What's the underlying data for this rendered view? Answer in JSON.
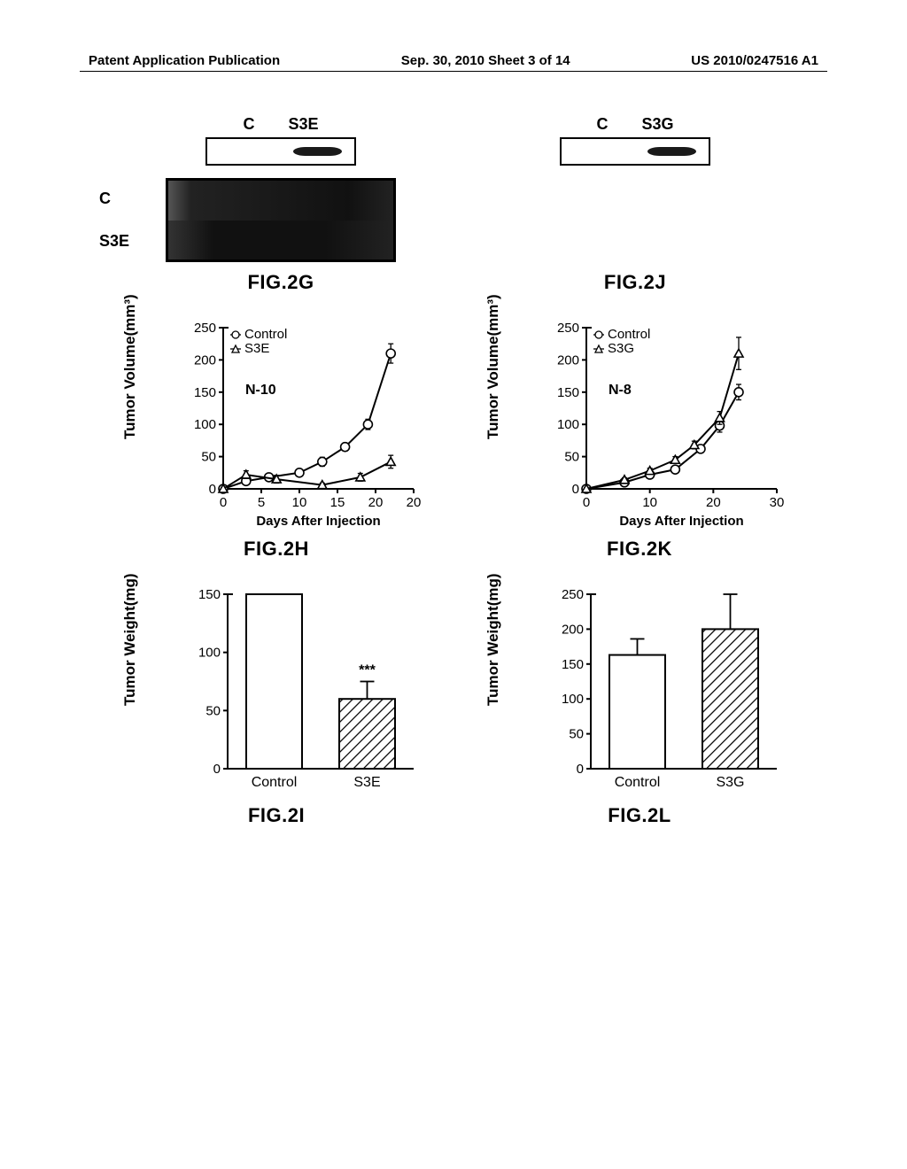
{
  "header": {
    "left": "Patent Application Publication",
    "center": "Sep. 30, 2010  Sheet 3 of 14",
    "right": "US 2010/0247516 A1"
  },
  "panels": {
    "G": {
      "title": "FIG.2G",
      "top_labels": [
        "C",
        "S3E"
      ],
      "gel_labels": [
        "C",
        "S3E"
      ]
    },
    "J": {
      "title": "FIG.2J",
      "top_labels": [
        "C",
        "S3G"
      ]
    },
    "H": {
      "title": "FIG.2H",
      "type": "line",
      "ylabel": "Tumor Volume(mm³)",
      "xlabel": "Days After Injection",
      "legend": [
        "Control",
        "S3E"
      ],
      "legend_markers": [
        "open-circle",
        "open-triangle"
      ],
      "n_label": "N-10",
      "ylim": [
        0,
        250
      ],
      "ytick_step": 50,
      "xlim": [
        0,
        25
      ],
      "xtick_step": 5,
      "xtick_label_extra": "20",
      "series": [
        {
          "name": "Control",
          "marker": "circle",
          "color": "#000000",
          "points": [
            [
              0,
              0
            ],
            [
              3,
              12
            ],
            [
              6,
              18
            ],
            [
              10,
              25
            ],
            [
              13,
              42
            ],
            [
              16,
              65
            ],
            [
              19,
              100
            ],
            [
              22,
              210
            ]
          ],
          "err": [
            0,
            5,
            4,
            5,
            7,
            6,
            8,
            15
          ]
        },
        {
          "name": "S3E",
          "marker": "triangle",
          "color": "#000000",
          "points": [
            [
              0,
              0
            ],
            [
              3,
              22
            ],
            [
              7,
              15
            ],
            [
              13,
              6
            ],
            [
              18,
              18
            ],
            [
              22,
              42
            ]
          ],
          "err": [
            0,
            6,
            6,
            3,
            6,
            10
          ]
        }
      ],
      "line_width": 2,
      "marker_size": 5,
      "background_color": "#ffffff"
    },
    "K": {
      "title": "FIG.2K",
      "type": "line",
      "ylabel": "Tumor Volume(mm³)",
      "xlabel": "Days After Injection",
      "legend": [
        "Control",
        "S3G"
      ],
      "legend_markers": [
        "open-circle",
        "open-triangle"
      ],
      "n_label": "N-8",
      "ylim": [
        0,
        250
      ],
      "ytick_step": 50,
      "xlim": [
        0,
        30
      ],
      "xtick_step": 10,
      "series": [
        {
          "name": "Control",
          "marker": "circle",
          "color": "#000000",
          "points": [
            [
              0,
              0
            ],
            [
              6,
              10
            ],
            [
              10,
              22
            ],
            [
              14,
              30
            ],
            [
              18,
              62
            ],
            [
              21,
              98
            ],
            [
              24,
              150
            ]
          ],
          "err": [
            0,
            3,
            3,
            4,
            6,
            10,
            12
          ]
        },
        {
          "name": "S3G",
          "marker": "triangle",
          "color": "#000000",
          "points": [
            [
              0,
              0
            ],
            [
              6,
              14
            ],
            [
              10,
              28
            ],
            [
              14,
              45
            ],
            [
              17,
              68
            ],
            [
              21,
              110
            ],
            [
              24,
              210
            ]
          ],
          "err": [
            0,
            3,
            4,
            5,
            6,
            10,
            25
          ]
        }
      ],
      "line_width": 2,
      "marker_size": 5,
      "background_color": "#ffffff"
    },
    "I": {
      "title": "FIG.2I",
      "type": "bar",
      "ylabel": "Tumor Weight(mg)",
      "ylim": [
        0,
        150
      ],
      "ytick_step": 50,
      "categories": [
        "Control",
        "S3E"
      ],
      "values": [
        150,
        60
      ],
      "err": [
        0,
        15
      ],
      "fill": [
        "none",
        "hatch"
      ],
      "bar_colors": [
        "#ffffff",
        "#ffffff"
      ],
      "border_color": "#000000",
      "bar_width": 0.6,
      "annotation": {
        "text": "***",
        "over": 1
      }
    },
    "L": {
      "title": "FIG.2L",
      "type": "bar",
      "ylabel": "Tumor Weight(mg)",
      "ylim": [
        0,
        250
      ],
      "ytick_step": 50,
      "categories": [
        "Control",
        "S3G"
      ],
      "values": [
        163,
        200
      ],
      "err": [
        23,
        50
      ],
      "fill": [
        "none",
        "hatch"
      ],
      "bar_colors": [
        "#ffffff",
        "#ffffff"
      ],
      "border_color": "#000000",
      "bar_width": 0.6
    }
  },
  "colors": {
    "axis": "#000000",
    "text": "#000000",
    "hatch": "#000000"
  },
  "font": {
    "axis_label": 17,
    "tick": 15,
    "legend": 15,
    "title": 22
  }
}
